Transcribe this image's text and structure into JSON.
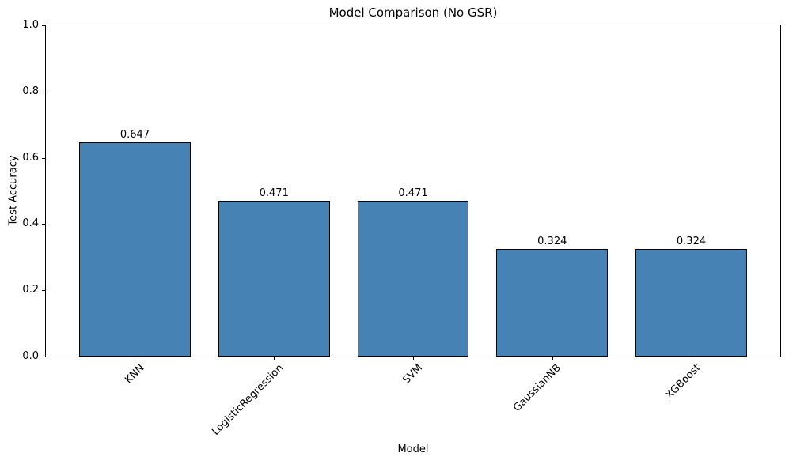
{
  "chart_data": {
    "type": "bar",
    "title": "Model Comparison (No GSR)",
    "xlabel": "Model",
    "ylabel": "Test Accuracy",
    "categories": [
      "KNN",
      "LogisticRegression",
      "SVM",
      "GaussianNB",
      "XGBoost"
    ],
    "values": [
      0.647,
      0.471,
      0.471,
      0.324,
      0.324
    ],
    "bar_labels": [
      "0.647",
      "0.471",
      "0.471",
      "0.324",
      "0.324"
    ],
    "ylim": [
      0.0,
      1.0
    ],
    "yticks": [
      "0.0",
      "0.2",
      "0.4",
      "0.6",
      "0.8",
      "1.0"
    ],
    "xlim": [
      -0.64,
      4.64
    ],
    "bar_width": 0.8,
    "bar_color": "#4682b4",
    "bar_edge_color": "#000000",
    "spine_color": "#000000",
    "grid": false,
    "legend": "none"
  }
}
